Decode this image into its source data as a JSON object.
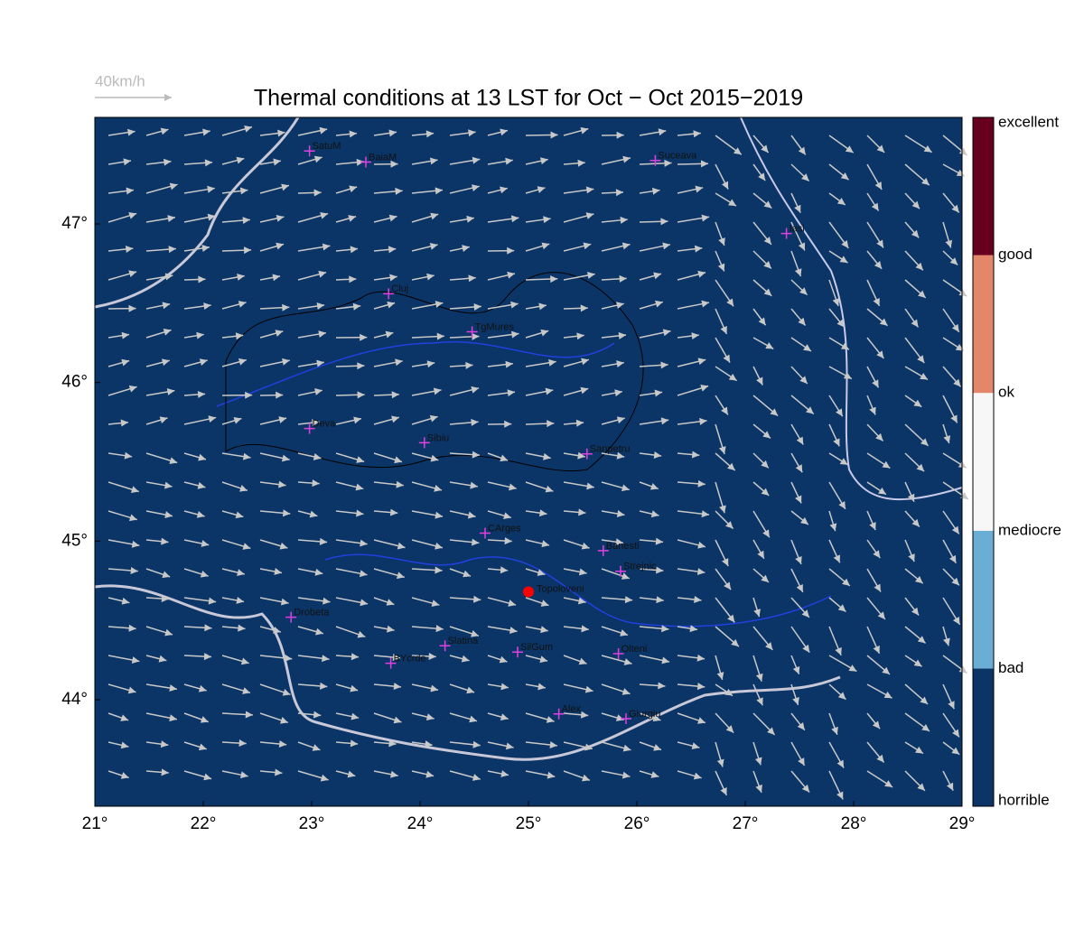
{
  "title": "Thermal conditions at 13 LST for Oct − Oct  2015−2019",
  "scale_label": "40km/h",
  "xlim": [
    21,
    29
  ],
  "ylim": [
    43.328,
    47.672
  ],
  "lon_ticks": [
    {
      "value": 21,
      "label": "21°"
    },
    {
      "value": 22,
      "label": "22°"
    },
    {
      "value": 23,
      "label": "23°"
    },
    {
      "value": 24,
      "label": "24°"
    },
    {
      "value": 25,
      "label": "25°"
    },
    {
      "value": 26,
      "label": "26°"
    },
    {
      "value": 27,
      "label": "27°"
    },
    {
      "value": 28,
      "label": "28°"
    },
    {
      "value": 29,
      "label": "29°"
    }
  ],
  "lat_ticks": [
    {
      "value": 44,
      "label": "44°"
    },
    {
      "value": 45,
      "label": "45°"
    },
    {
      "value": 46,
      "label": "46°"
    },
    {
      "value": 47,
      "label": "47°"
    }
  ],
  "map_color": "#0b3566",
  "cities": [
    {
      "name": "SatuM",
      "lon": 22.98,
      "lat": 47.46
    },
    {
      "name": "BaiaM",
      "lon": 23.5,
      "lat": 47.39
    },
    {
      "name": "Suceava",
      "lon": 26.17,
      "lat": 47.4
    },
    {
      "name": "Iasi",
      "lon": 27.38,
      "lat": 46.94
    },
    {
      "name": "Cluj",
      "lon": 23.71,
      "lat": 46.56
    },
    {
      "name": "TgMures",
      "lon": 24.48,
      "lat": 46.32
    },
    {
      "name": "Deva",
      "lon": 22.98,
      "lat": 45.71
    },
    {
      "name": "Sibiu",
      "lon": 24.04,
      "lat": 45.62
    },
    {
      "name": "Sanpetru",
      "lon": 25.54,
      "lat": 45.55
    },
    {
      "name": "CArges",
      "lon": 24.6,
      "lat": 45.05
    },
    {
      "name": "Banesti",
      "lon": 25.69,
      "lat": 44.94
    },
    {
      "name": "Strejnic",
      "lon": 25.85,
      "lat": 44.81
    },
    {
      "name": "Drobeta",
      "lon": 22.81,
      "lat": 44.52
    },
    {
      "name": "Slatina",
      "lon": 24.23,
      "lat": 44.34
    },
    {
      "name": "SilGum",
      "lon": 24.9,
      "lat": 44.3
    },
    {
      "name": "Olteni",
      "lon": 25.83,
      "lat": 44.29
    },
    {
      "name": "BYcrde",
      "lon": 23.73,
      "lat": 44.23
    },
    {
      "name": "Alex",
      "lon": 25.28,
      "lat": 43.91
    },
    {
      "name": "Giurgiu",
      "lon": 25.9,
      "lat": 43.88
    }
  ],
  "site": {
    "name": "Topoloveni",
    "lon": 25.0,
    "lat": 44.68
  },
  "colorbar": {
    "labels": [
      "horrible",
      "bad",
      "mediocre",
      "ok",
      "good",
      "excellent"
    ],
    "colors": [
      "#0b3566",
      "#6aaed6",
      "#f7f7f7",
      "#e3866a",
      "#67001f"
    ]
  }
}
